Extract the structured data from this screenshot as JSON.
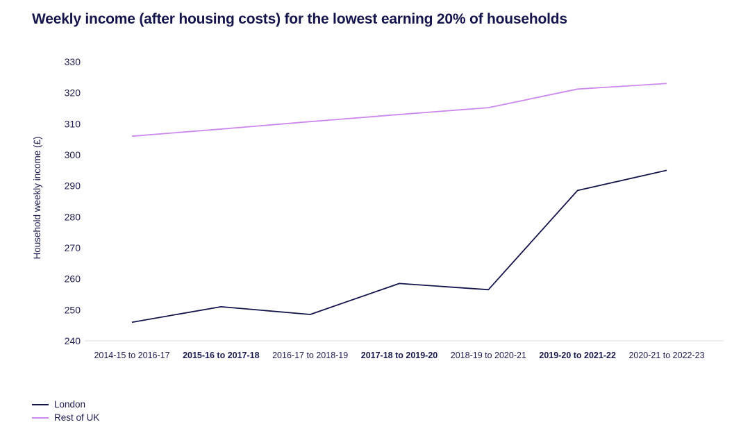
{
  "chart_data": {
    "type": "line",
    "title": "Weekly income (after housing costs) for the lowest earning 20% of households",
    "xlabel": "",
    "ylabel": "Household weekly income (£)",
    "ylim": [
      240,
      330
    ],
    "yticks": [
      240,
      250,
      260,
      270,
      280,
      290,
      300,
      310,
      320,
      330
    ],
    "grid": false,
    "legend_position": "bottom-left",
    "categories": [
      "2014-15 to 2016-17",
      "2015-16 to 2017-18",
      "2016-17 to 2018-19",
      "2017-18 to 2019-20",
      "2018-19 to 2020-21",
      "2019-20 to 2021-22",
      "2020-21 to 2022-23"
    ],
    "category_bold": [
      false,
      true,
      false,
      true,
      false,
      true,
      false
    ],
    "series": [
      {
        "name": "London",
        "color": "#14144a",
        "values": [
          246,
          251,
          248.5,
          258.5,
          256.5,
          288.5,
          295
        ]
      },
      {
        "name": "Rest of UK",
        "color": "#cc88ee",
        "values": [
          306,
          308.3,
          310.7,
          313,
          315.2,
          321.2,
          323
        ]
      }
    ]
  }
}
